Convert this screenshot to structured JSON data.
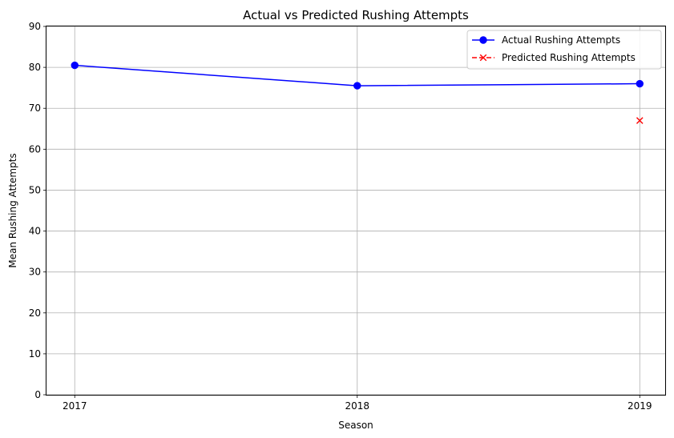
{
  "chart_data": {
    "type": "line",
    "title": "Actual vs Predicted Rushing Attempts",
    "xlabel": "Season",
    "ylabel": "Mean Rushing Attempts",
    "x": [
      2017,
      2018,
      2019
    ],
    "x_tick_labels": [
      "2017",
      "2018",
      "2019"
    ],
    "ylim": [
      0,
      90
    ],
    "y_ticks": [
      0,
      10,
      20,
      30,
      40,
      50,
      60,
      70,
      80,
      90
    ],
    "grid": true,
    "legend_position": "top-right",
    "series": [
      {
        "name": "Actual Rushing Attempts",
        "x": [
          2017,
          2018,
          2019
        ],
        "values": [
          80.5,
          75.5,
          76
        ],
        "color": "#0000ff",
        "marker": "circle",
        "line": "solid"
      },
      {
        "name": "Predicted Rushing Attempts",
        "x": [
          2019
        ],
        "values": [
          67
        ],
        "color": "#ff0000",
        "marker": "x",
        "line": "dashed"
      }
    ]
  }
}
